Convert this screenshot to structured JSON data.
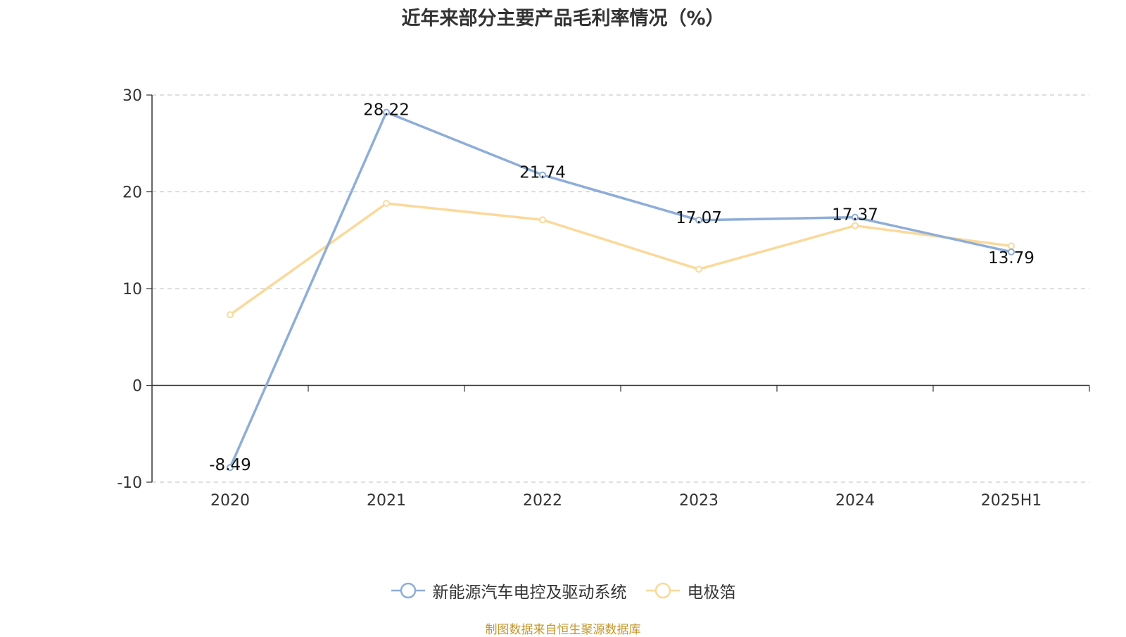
{
  "chart_data": {
    "type": "line",
    "title": "近年来部分主要产品毛利率情况（%）",
    "categories": [
      "2020",
      "2021",
      "2022",
      "2023",
      "2024",
      "2025H1"
    ],
    "series": [
      {
        "name": "新能源汽车电控及驱动系统",
        "color": "#8eadd8",
        "values": [
          -8.49,
          28.22,
          21.74,
          17.07,
          17.37,
          13.79
        ],
        "show_labels": true
      },
      {
        "name": "电极箔",
        "color": "#fad99a",
        "values": [
          7.3,
          18.8,
          17.1,
          12.0,
          16.5,
          14.4
        ],
        "show_labels": false
      }
    ],
    "ylim": [
      -10,
      30
    ],
    "yticks": [
      -10,
      0,
      10,
      20,
      30
    ],
    "grid": true,
    "legend_position": "bottom"
  },
  "source_note": "制图数据来自恒生聚源数据库"
}
